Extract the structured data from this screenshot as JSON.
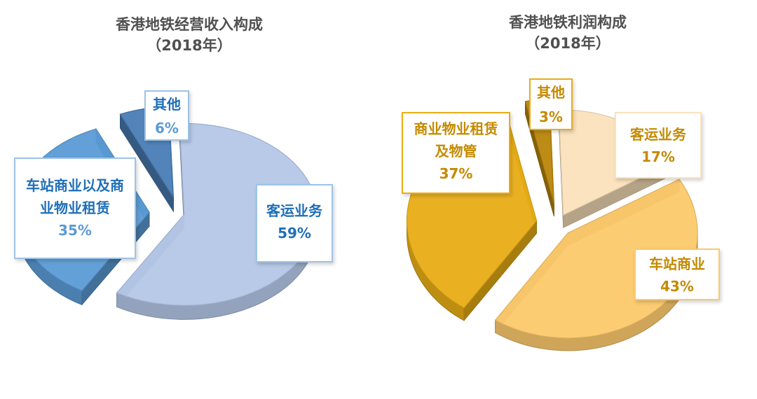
{
  "chart_data": [
    {
      "type": "pie",
      "title": "香港地铁经营收入构成",
      "subtitle": "（2018年）",
      "slices": [
        {
          "label": "客运业务",
          "value": 59,
          "value_label": "59%"
        },
        {
          "label": "车站商业以及商业物业租赁",
          "value": 35,
          "value_label": "35%"
        },
        {
          "label": "其他",
          "value": 6,
          "value_label": "6%"
        }
      ],
      "colors": [
        "#b4c7e7",
        "#5b9bd5",
        "#4a7db5"
      ],
      "label_color": "#1f6fb8",
      "percent_color": "#5b9bd5",
      "exploded": true,
      "style": "3d"
    },
    {
      "type": "pie",
      "title": "香港地铁利润构成",
      "subtitle": "（2018年）",
      "slices": [
        {
          "label": "客运业务",
          "value": 17,
          "value_label": "17%"
        },
        {
          "label": "车站商业",
          "value": 43,
          "value_label": "43%"
        },
        {
          "label": "商业物业租赁及物管",
          "value": 37,
          "value_label": "37%"
        },
        {
          "label": "其他",
          "value": 3,
          "value_label": "3%"
        }
      ],
      "colors": [
        "#fbe2bd",
        "#fcc96c",
        "#e8ad16",
        "#b8860b"
      ],
      "label_color": "#c48a00",
      "percent_color": "#c48a00",
      "exploded": true,
      "style": "3d"
    }
  ]
}
